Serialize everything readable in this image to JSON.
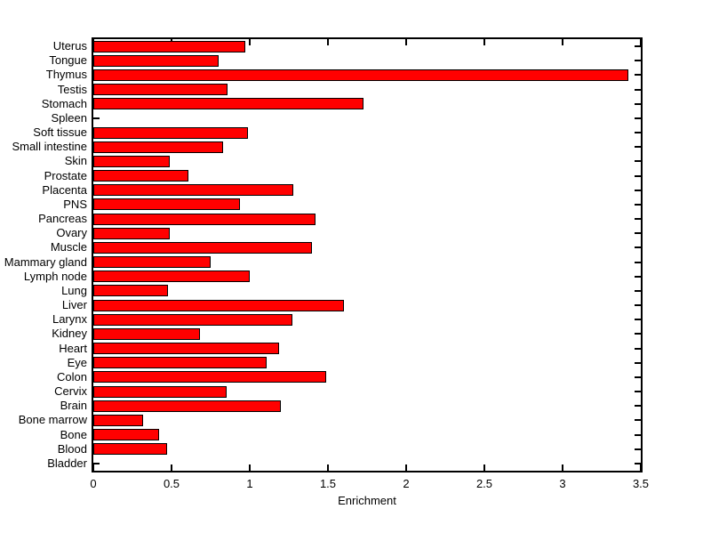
{
  "figure": {
    "background_color": "#ffffff",
    "plot_background_color": "#ffffff",
    "axis_color": "#000000",
    "text_color": "#000000"
  },
  "chart_data": {
    "type": "bar",
    "orientation": "horizontal",
    "title": "",
    "xlabel": "Enrichment",
    "ylabel": "",
    "xlim": [
      0,
      3.5
    ],
    "xticks": [
      0,
      0.5,
      1,
      1.5,
      2,
      2.5,
      3,
      3.5
    ],
    "xtick_labels": [
      "0",
      "0.5",
      "1",
      "1.5",
      "2",
      "2.5",
      "3",
      "3.5"
    ],
    "grid": false,
    "legend": null,
    "bar_color": "#ff0000",
    "bar_edge_color": "#000000",
    "categories_top_to_bottom": [
      "Uterus",
      "Tongue",
      "Thymus",
      "Testis",
      "Stomach",
      "Spleen",
      "Soft tissue",
      "Small intestine",
      "Skin",
      "Prostate",
      "Placenta",
      "PNS",
      "Pancreas",
      "Ovary",
      "Muscle",
      "Mammary gland",
      "Lymph node",
      "Lung",
      "Liver",
      "Larynx",
      "Kidney",
      "Heart",
      "Eye",
      "Colon",
      "Cervix",
      "Brain",
      "Bone marrow",
      "Bone",
      "Blood",
      "Bladder"
    ],
    "values": [
      0.97,
      0.8,
      3.42,
      0.86,
      1.73,
      0,
      0.99,
      0.83,
      0.49,
      0.61,
      1.28,
      0.94,
      1.42,
      0.49,
      1.4,
      0.75,
      1.0,
      0.48,
      1.6,
      1.27,
      0.68,
      1.19,
      1.11,
      1.49,
      0.85,
      1.2,
      0.32,
      0.42,
      0.47,
      0
    ]
  }
}
